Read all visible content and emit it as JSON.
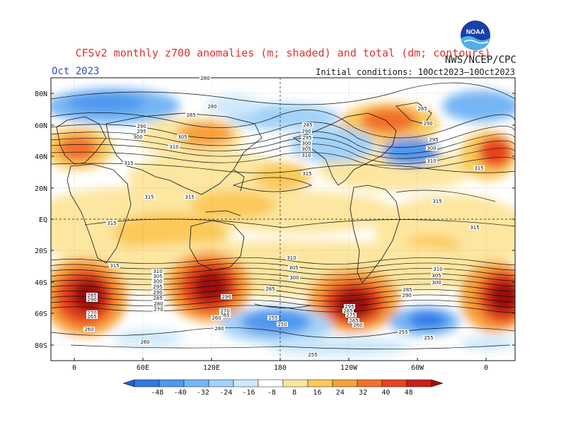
{
  "header": {
    "title": "CFSv2 monthly z700 anomalies (m; shaded) and total (dm; contours)",
    "month": "Oct 2023",
    "agency": "NWS/NCEP/CPC",
    "init_conditions": "Initial conditions: 10Oct2023–10Oct2023",
    "logo_text": "NOAA"
  },
  "map": {
    "lat_labels": [
      "80N",
      "60N",
      "40N",
      "20N",
      "EQ",
      "20S",
      "40S",
      "60S",
      "80S"
    ],
    "lon_labels": [
      "0",
      "60E",
      "120E",
      "180",
      "120W",
      "60W",
      "0"
    ]
  },
  "colorbar": {
    "ticks": [
      "-48",
      "-40",
      "-32",
      "-24",
      "-16",
      "-8",
      "8",
      "16",
      "24",
      "32",
      "40",
      "48"
    ],
    "colors": [
      "#1f5fd8",
      "#2f7ae8",
      "#4f98ee",
      "#75b6f4",
      "#a3d2f8",
      "#cde9fb",
      "#ffffff",
      "#fde6a0",
      "#fbc95a",
      "#f7a13a",
      "#f2702a",
      "#e8431f",
      "#c8201a",
      "#9c0d0d"
    ]
  },
  "contour_labels": [
    {
      "text": "280"
    },
    {
      "text": "285"
    },
    {
      "text": "290"
    },
    {
      "text": "295"
    },
    {
      "text": "300"
    },
    {
      "text": "305"
    },
    {
      "text": "310"
    },
    {
      "text": "315"
    },
    {
      "text": "315"
    },
    {
      "text": "315"
    },
    {
      "text": "315"
    },
    {
      "text": "315"
    },
    {
      "text": "280"
    },
    {
      "text": "285"
    },
    {
      "text": "290"
    },
    {
      "text": "295"
    },
    {
      "text": "300"
    },
    {
      "text": "305"
    },
    {
      "text": "310"
    },
    {
      "text": "315"
    },
    {
      "text": "285"
    },
    {
      "text": "290"
    },
    {
      "text": "295"
    },
    {
      "text": "300"
    },
    {
      "text": "310"
    },
    {
      "text": "315"
    },
    {
      "text": "315"
    },
    {
      "text": "310"
    },
    {
      "text": "305"
    },
    {
      "text": "300"
    },
    {
      "text": "290"
    },
    {
      "text": "285"
    },
    {
      "text": "270"
    },
    {
      "text": "265"
    },
    {
      "text": "260"
    },
    {
      "text": "310"
    },
    {
      "text": "305"
    },
    {
      "text": "300"
    },
    {
      "text": "285"
    },
    {
      "text": "280"
    },
    {
      "text": "270"
    },
    {
      "text": "260"
    },
    {
      "text": "280"
    },
    {
      "text": "290"
    },
    {
      "text": "285"
    },
    {
      "text": "270"
    },
    {
      "text": "265"
    },
    {
      "text": "260"
    },
    {
      "text": "255"
    },
    {
      "text": "250"
    },
    {
      "text": "255"
    },
    {
      "text": "310"
    },
    {
      "text": "305"
    },
    {
      "text": "300"
    },
    {
      "text": "295"
    },
    {
      "text": "285"
    },
    {
      "text": "275"
    },
    {
      "text": "265"
    },
    {
      "text": "260"
    },
    {
      "text": "255"
    },
    {
      "text": "255"
    },
    {
      "text": "285"
    },
    {
      "text": "290"
    },
    {
      "text": "310"
    },
    {
      "text": "305"
    },
    {
      "text": "300"
    },
    {
      "text": "295"
    },
    {
      "text": "290"
    },
    {
      "text": "285"
    },
    {
      "text": "280"
    },
    {
      "text": "270"
    },
    {
      "text": "260"
    },
    {
      "text": "315"
    }
  ]
}
